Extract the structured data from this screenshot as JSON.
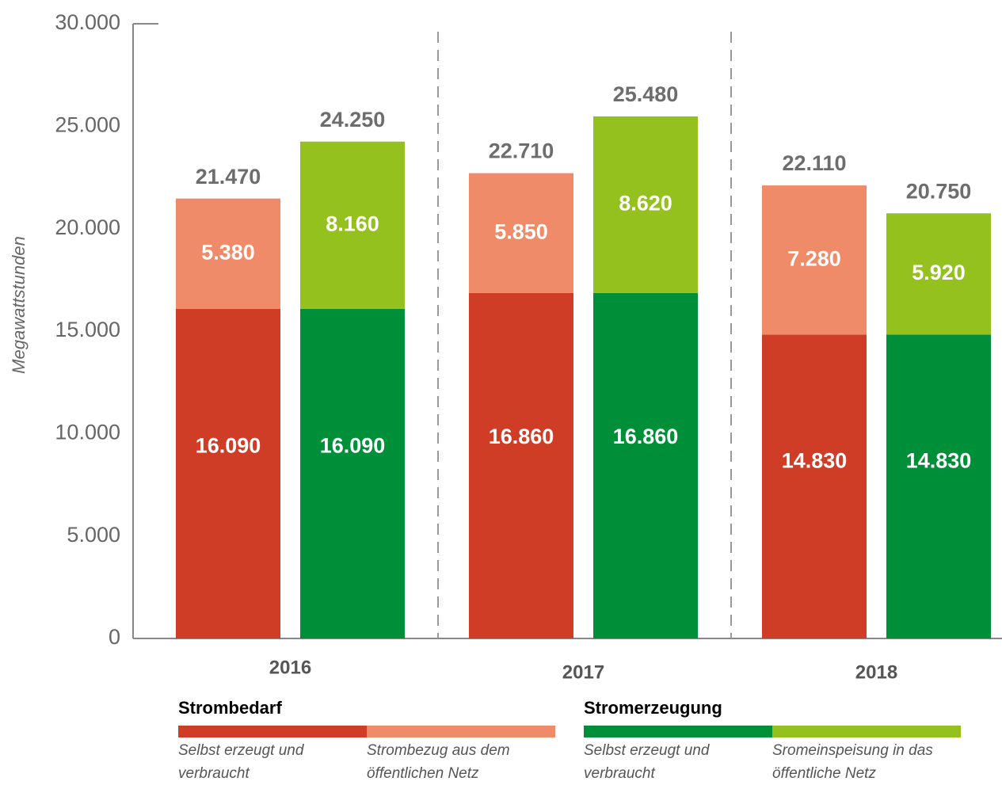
{
  "chart_data": {
    "type": "stacked-grouped-bar",
    "y_label": "Megawattstunden",
    "categories": [
      "2016",
      "2017",
      "2018"
    ],
    "ylim": [
      0,
      30000
    ],
    "yticks": [
      0,
      {
        "value": 5000,
        "label": "5.000"
      },
      {
        "value": 10000,
        "label": "10.000"
      },
      {
        "value": 15000,
        "label": "15.000"
      },
      {
        "value": 20000,
        "label": "20.000"
      },
      {
        "value": 25000,
        "label": "25.000"
      },
      {
        "value": 30000,
        "label": "30.000"
      }
    ],
    "stacks": [
      {
        "name": "Strombedarf",
        "totals": [
          21470,
          22710,
          22110
        ],
        "total_labels": [
          "21.470",
          "22.710",
          "22.110"
        ],
        "series": [
          {
            "name": "Selbst erzeugt und verbraucht",
            "color": "#cf3d27",
            "values": [
              16090,
              16860,
              14830
            ],
            "value_labels": [
              "16.090",
              "16.860",
              "14.830"
            ]
          },
          {
            "name": "Strombezug aus dem öffentlichen Netz",
            "color": "#f08b6a",
            "values": [
              5380,
              5850,
              7280
            ],
            "value_labels": [
              "5.380",
              "5.850",
              "7.280"
            ]
          }
        ]
      },
      {
        "name": "Stromerzeugung",
        "totals": [
          24250,
          25480,
          20750
        ],
        "total_labels": [
          "24.250",
          "25.480",
          "20.750"
        ],
        "series": [
          {
            "name": "Selbst erzeugt und verbraucht",
            "color": "#008f39",
            "values": [
              16090,
              16860,
              14830
            ],
            "value_labels": [
              "16.090",
              "16.860",
              "14.830"
            ]
          },
          {
            "name": "Sromeinspeisung in das öffentliche Netz",
            "color": "#95c11f",
            "values": [
              8160,
              8620,
              5920
            ],
            "value_labels": [
              "8.160",
              "8.620",
              "5.920"
            ]
          }
        ]
      }
    ]
  }
}
